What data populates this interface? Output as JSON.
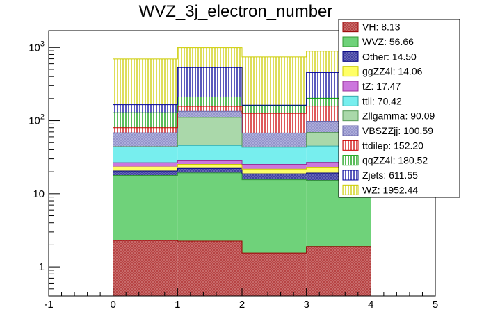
{
  "chart_data": {
    "type": "bar",
    "stacked": true,
    "title": "WVZ_3j_electron_number",
    "xlabel": "",
    "ylabel": "",
    "xlim": [
      -1,
      5
    ],
    "ylim": [
      0.4,
      1700
    ],
    "yscale": "log",
    "x_ticks": [
      "-1",
      "0",
      "1",
      "2",
      "3",
      "4",
      "5"
    ],
    "y_ticks": [
      "1",
      "10",
      "10^2",
      "10^3"
    ],
    "bins": [
      [
        0,
        1
      ],
      [
        1,
        2
      ],
      [
        2,
        3
      ],
      [
        3,
        4
      ]
    ],
    "legend_position": "top-right",
    "series": [
      {
        "name": "VH",
        "legend_label": "VH: 8.13",
        "fill": "#c96f6f",
        "pattern": "crosshatch-dark",
        "stroke": "#990000",
        "values": [
          2.3,
          2.25,
          1.55,
          1.9
        ]
      },
      {
        "name": "WVZ",
        "legend_label": "WVZ: 56.66",
        "fill": "#6fd27a",
        "pattern": "solid",
        "stroke": "#339933",
        "values": [
          15.5,
          17.0,
          14.0,
          13.3
        ]
      },
      {
        "name": "Other",
        "legend_label": "Other: 14.50",
        "fill": "#6b6bb8",
        "pattern": "crosshatch-dark",
        "stroke": "#000080",
        "values": [
          2.7,
          3.0,
          3.2,
          4.0
        ]
      },
      {
        "name": "ggZZ4l",
        "legend_label": "ggZZ4l: 14.06",
        "fill": "#ffff66",
        "pattern": "solid",
        "stroke": "#cccc00",
        "values": [
          2.8,
          3.0,
          3.0,
          3.5
        ]
      },
      {
        "name": "tZ",
        "legend_label": "tZ: 17.47",
        "fill": "#cc77dd",
        "pattern": "solid",
        "stroke": "#993399",
        "values": [
          3.3,
          3.5,
          3.5,
          4.2
        ]
      },
      {
        "name": "ttll",
        "legend_label": "ttll: 70.42",
        "fill": "#77eeee",
        "pattern": "solid",
        "stroke": "#33aaaa",
        "values": [
          17.0,
          17.0,
          18.0,
          18.0
        ]
      },
      {
        "name": "Zllgamma",
        "legend_label": "Zllgamma: 90.09",
        "fill": "#aad8aa",
        "pattern": "solid",
        "stroke": "#559955",
        "values": [
          0.5,
          65.0,
          0.5,
          24.0
        ]
      },
      {
        "name": "VBSZZjj",
        "legend_label": "VBSZZjj: 100.59",
        "fill": "#b0b0dd",
        "pattern": "crosshatch-light",
        "stroke": "#6666aa",
        "values": [
          24.0,
          23.0,
          24.0,
          29.0
        ]
      },
      {
        "name": "ttdilep",
        "legend_label": "ttdilep: 152.20",
        "fill": "#ff5555",
        "pattern": "vlines",
        "stroke": "#cc0000",
        "values": [
          12.0,
          23.0,
          58.0,
          60.0
        ]
      },
      {
        "name": "qqZZ4l",
        "legend_label": "qqZZ4l: 180.52",
        "fill": "#44dd44",
        "pattern": "vlines",
        "stroke": "#009900",
        "values": [
          48.0,
          54.0,
          35.0,
          44.0
        ]
      },
      {
        "name": "Zjets",
        "legend_label": "Zjets: 611.55",
        "fill": "#3355ff",
        "pattern": "vlines",
        "stroke": "#000099",
        "values": [
          37.0,
          320.0,
          2.0,
          252.0
        ]
      },
      {
        "name": "WZ",
        "legend_label": "WZ: 1952.44",
        "fill": "#ffff55",
        "pattern": "vlines",
        "stroke": "#cccc00",
        "values": [
          530.0,
          460.0,
          580.0,
          433.0
        ]
      }
    ]
  }
}
